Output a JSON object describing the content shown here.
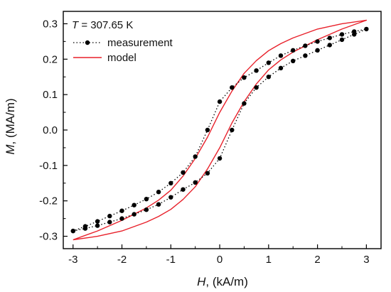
{
  "chart_data": {
    "type": "line",
    "annotation": {
      "symbol": "T",
      "text": " = 307.65 K"
    },
    "xlabel": {
      "symbol": "H",
      "unit": ", (kA/m)"
    },
    "ylabel": {
      "symbol": "M",
      "unit": ", (MA/m)"
    },
    "xlim": [
      -3.2,
      3.3
    ],
    "ylim": [
      -0.335,
      0.335
    ],
    "xticks": [
      -3,
      -2,
      -1,
      0,
      1,
      2,
      3
    ],
    "xtick_labels": [
      "-3",
      "-2",
      "-1",
      "0",
      "1",
      "2",
      "3"
    ],
    "yticks": [
      -0.3,
      -0.2,
      -0.1,
      0.0,
      0.1,
      0.2,
      0.3
    ],
    "ytick_labels": [
      "-0.3",
      "-0.2",
      "-0.1",
      "0.0",
      "0.1",
      "0.2",
      "0.3"
    ],
    "grid": false,
    "legend_position": "top-left",
    "series": [
      {
        "name": "measurement",
        "style": "dotted line with filled circle markers",
        "color": "#000000",
        "x": [
          -3.0,
          -2.75,
          -2.5,
          -2.25,
          -2.0,
          -1.75,
          -1.5,
          -1.25,
          -1.0,
          -0.75,
          -0.5,
          -0.25,
          0.0,
          0.25,
          0.5,
          0.75,
          1.0,
          1.25,
          1.5,
          1.75,
          2.0,
          2.25,
          2.5,
          2.75,
          3.0,
          2.75,
          2.5,
          2.25,
          2.0,
          1.75,
          1.5,
          1.25,
          1.0,
          0.75,
          0.5,
          0.25,
          0.0,
          -0.25,
          -0.5,
          -0.75,
          -1.0,
          -1.25,
          -1.5,
          -1.75,
          -2.0,
          -2.25,
          -2.5,
          -2.75,
          -3.0
        ],
        "y": [
          -0.285,
          -0.278,
          -0.27,
          -0.26,
          -0.25,
          -0.238,
          -0.225,
          -0.21,
          -0.19,
          -0.168,
          -0.148,
          -0.122,
          -0.08,
          0.0,
          0.075,
          0.12,
          0.15,
          0.175,
          0.195,
          0.21,
          0.225,
          0.24,
          0.255,
          0.27,
          0.285,
          0.278,
          0.27,
          0.26,
          0.25,
          0.238,
          0.225,
          0.21,
          0.19,
          0.168,
          0.148,
          0.12,
          0.08,
          0.0,
          -0.075,
          -0.12,
          -0.15,
          -0.175,
          -0.195,
          -0.212,
          -0.228,
          -0.243,
          -0.258,
          -0.272,
          -0.285
        ]
      },
      {
        "name": "model",
        "style": "solid line",
        "color": "#e8202a",
        "x": [
          -3.0,
          -2.5,
          -2.0,
          -1.5,
          -1.25,
          -1.0,
          -0.75,
          -0.5,
          -0.25,
          0.0,
          0.25,
          0.5,
          0.75,
          1.0,
          1.25,
          1.5,
          2.0,
          2.5,
          3.0,
          2.5,
          2.0,
          1.5,
          1.25,
          1.0,
          0.75,
          0.5,
          0.25,
          0.0,
          -0.25,
          -0.5,
          -0.75,
          -1.0,
          -1.25,
          -1.5,
          -2.0,
          -2.5,
          -3.0
        ],
        "y": [
          -0.31,
          -0.3,
          -0.285,
          -0.26,
          -0.244,
          -0.224,
          -0.196,
          -0.16,
          -0.11,
          -0.05,
          0.02,
          0.08,
          0.13,
          0.17,
          0.198,
          0.22,
          0.255,
          0.285,
          0.31,
          0.3,
          0.285,
          0.26,
          0.244,
          0.224,
          0.196,
          0.16,
          0.11,
          0.05,
          -0.02,
          -0.08,
          -0.13,
          -0.17,
          -0.198,
          -0.22,
          -0.255,
          -0.285,
          -0.31
        ]
      }
    ]
  }
}
